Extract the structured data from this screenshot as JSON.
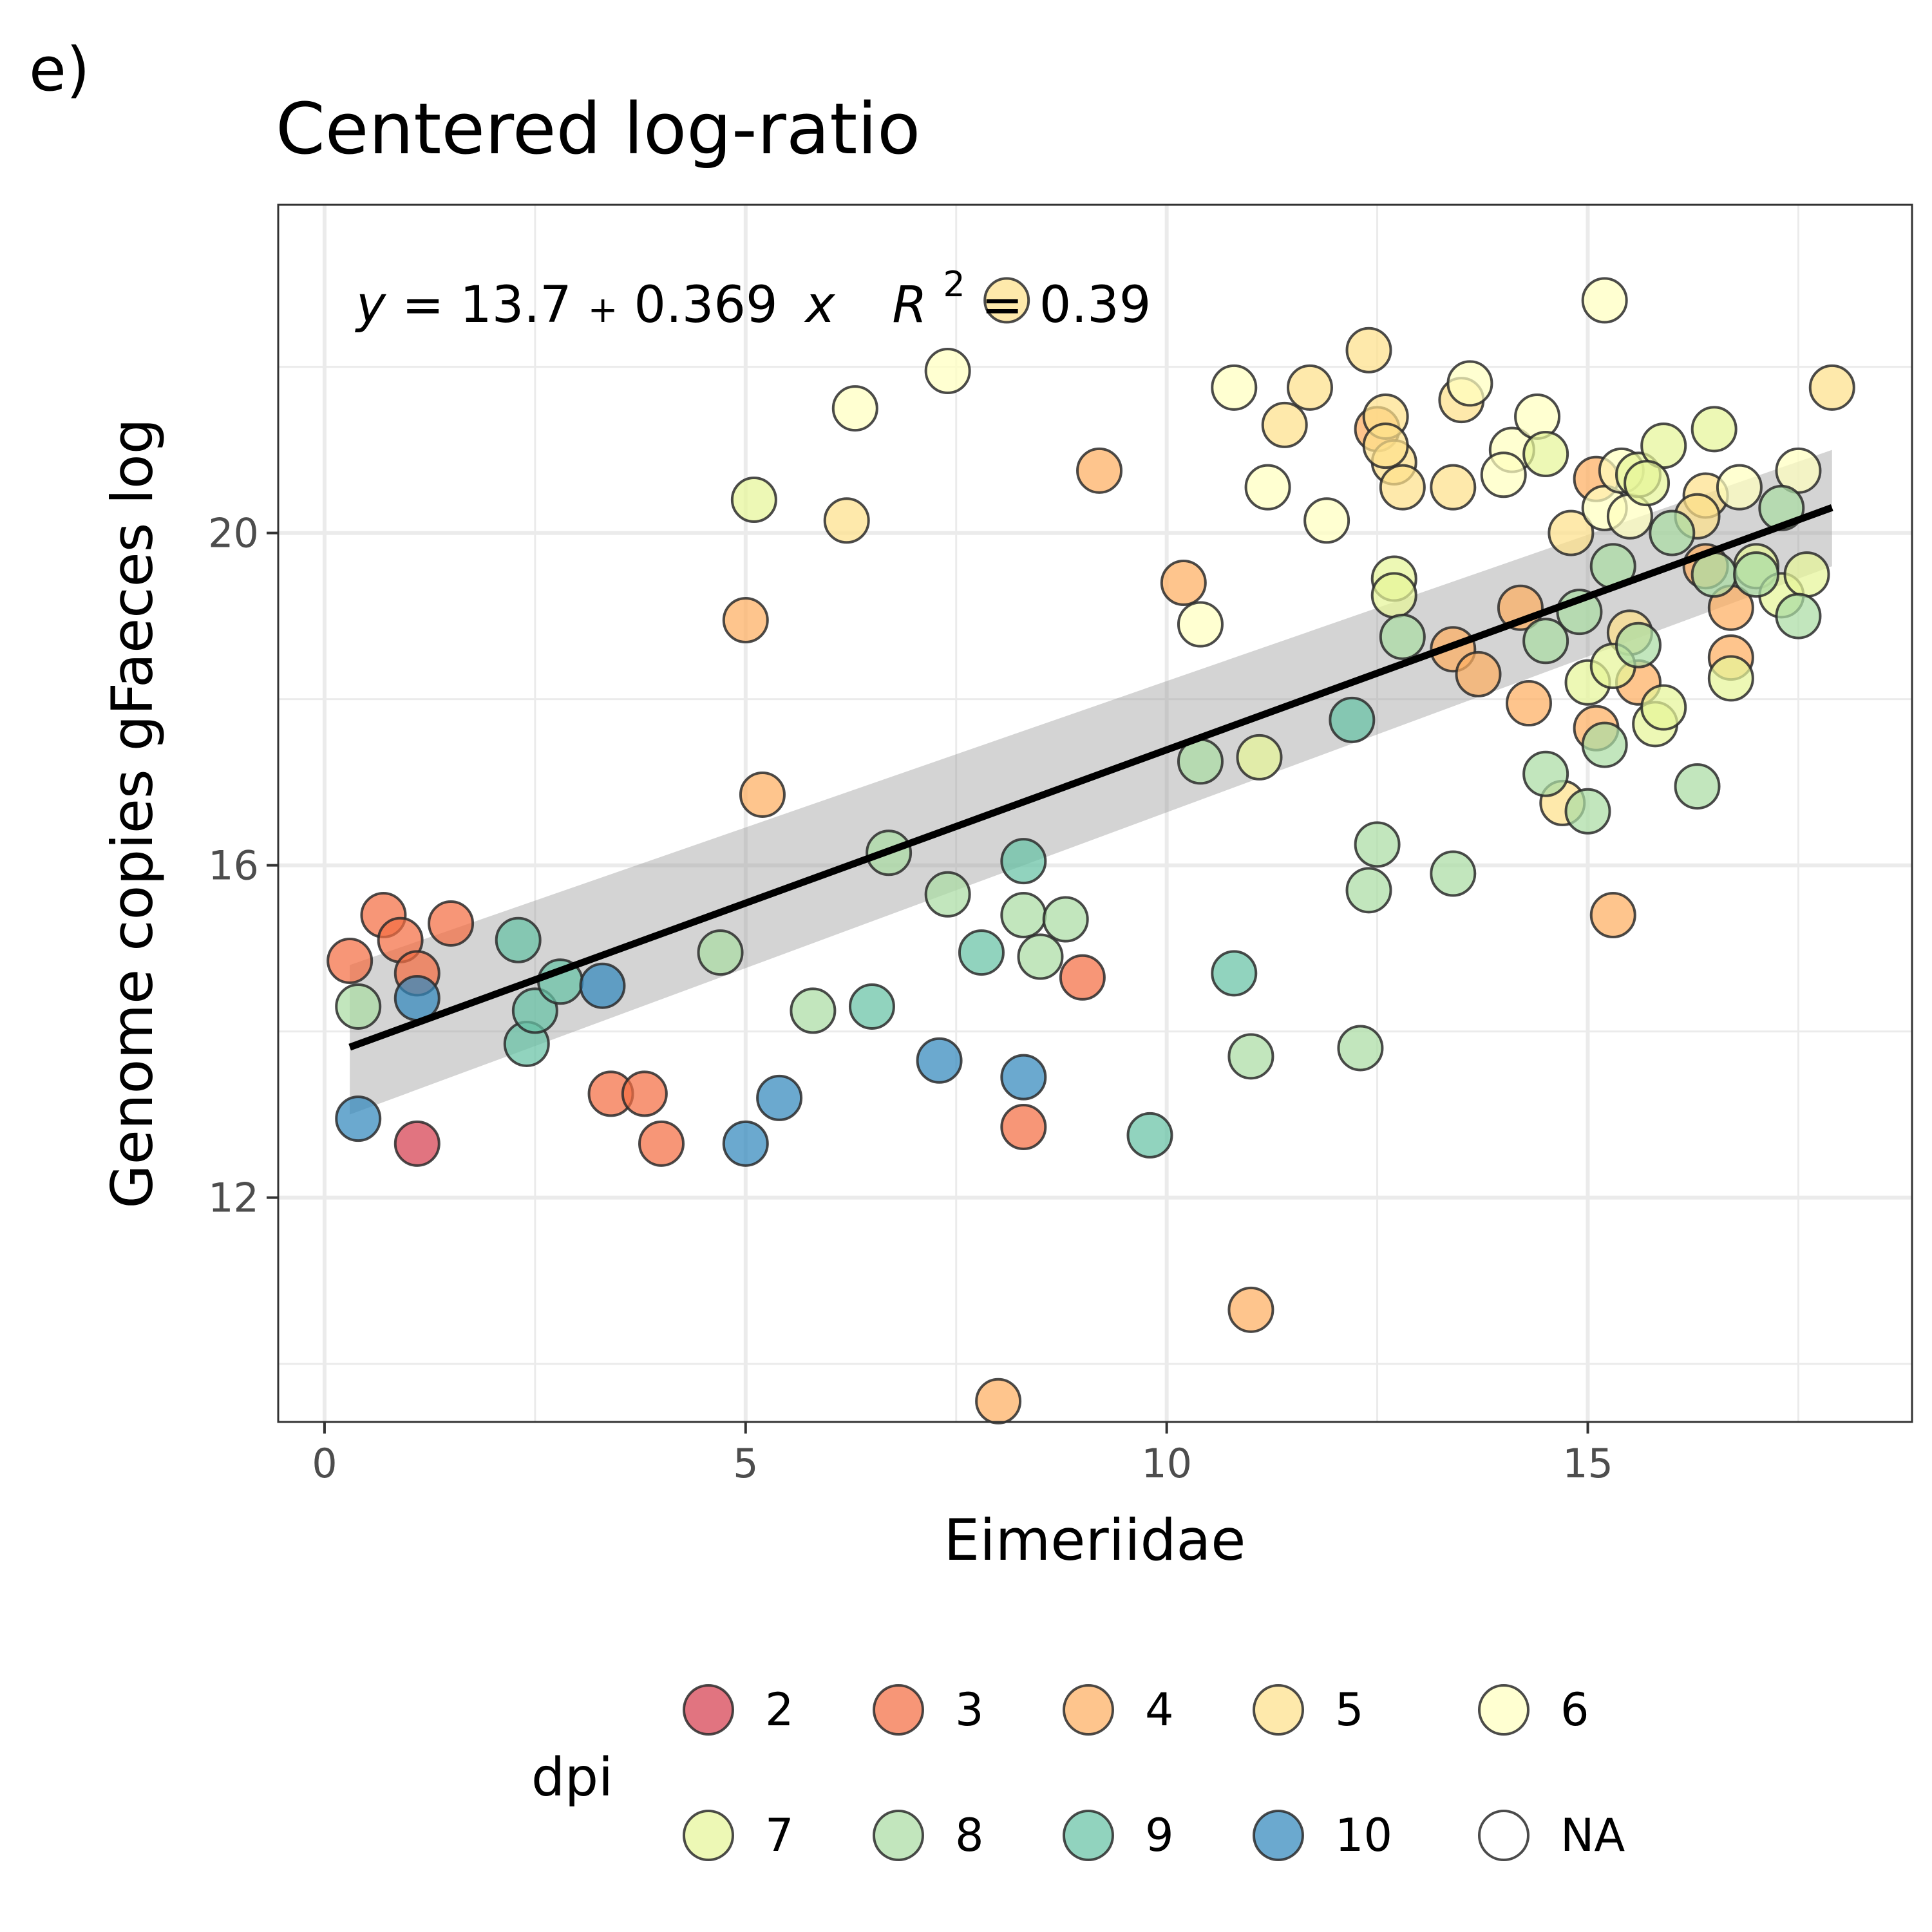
{
  "panel_label": "e)",
  "chart_data": {
    "type": "scatter",
    "title": "Centered log-ratio",
    "xlabel": "Eimeriidae",
    "ylabel": "Genome copies gFaeces log",
    "xlim": [
      -0.55,
      18.85
    ],
    "ylim": [
      9.3,
      23.95
    ],
    "x_ticks": [
      "0",
      "5",
      "10",
      "15"
    ],
    "x_tick_values": [
      0,
      5,
      10,
      15
    ],
    "y_ticks": [
      "12",
      "16",
      "20"
    ],
    "y_tick_values": [
      12,
      16,
      20
    ],
    "grid": true,
    "equation": {
      "y": "y",
      "eq1": " = 13.7",
      "plus": "+",
      "coef": "0.369",
      "x": "x",
      "r": "R",
      "sup": "2",
      "eq2": " = 0.39"
    },
    "fit": {
      "intercept": 13.7,
      "slope": 0.369,
      "x_range": [
        0.3,
        17.9
      ],
      "ci_lower": [
        13.0,
        19.6
      ],
      "ci_upper": [
        14.8,
        21.0
      ]
    },
    "legend": {
      "title": "dpi",
      "placement": "bottom",
      "entries": [
        {
          "label": "2",
          "color": "#D53E4F"
        },
        {
          "label": "3",
          "color": "#F46D43"
        },
        {
          "label": "4",
          "color": "#FDAE61"
        },
        {
          "label": "5",
          "color": "#FEE08B"
        },
        {
          "label": "6",
          "color": "#FFFFBF"
        },
        {
          "label": "7",
          "color": "#E6F598"
        },
        {
          "label": "8",
          "color": "#ABDDA4"
        },
        {
          "label": "9",
          "color": "#66C2A5"
        },
        {
          "label": "10",
          "color": "#3288BD"
        },
        {
          "label": "NA",
          "color": "none"
        }
      ]
    },
    "series": [
      {
        "name": "2",
        "points": [
          [
            1.1,
            12.65
          ]
        ]
      },
      {
        "name": "3",
        "points": [
          [
            0.3,
            14.85
          ],
          [
            0.7,
            15.4
          ],
          [
            0.9,
            15.1
          ],
          [
            1.1,
            14.7
          ],
          [
            1.5,
            15.3
          ],
          [
            3.4,
            13.25
          ],
          [
            3.8,
            13.25
          ],
          [
            4.0,
            12.65
          ],
          [
            8.3,
            12.85
          ],
          [
            9.0,
            14.65
          ]
        ]
      },
      {
        "name": "4",
        "points": [
          [
            5.0,
            18.95
          ],
          [
            5.2,
            16.85
          ],
          [
            9.2,
            20.75
          ],
          [
            10.2,
            19.4
          ],
          [
            11.0,
            10.65
          ],
          [
            8.0,
            9.55
          ],
          [
            13.4,
            18.6
          ],
          [
            13.7,
            18.3
          ],
          [
            14.3,
            17.95
          ],
          [
            15.1,
            17.65
          ],
          [
            15.3,
            15.4
          ],
          [
            15.6,
            18.2
          ],
          [
            16.7,
            19.1
          ],
          [
            16.7,
            18.5
          ],
          [
            15.1,
            20.65
          ],
          [
            12.5,
            21.25
          ],
          [
            14.2,
            19.1
          ],
          [
            16.4,
            19.6
          ]
        ]
      },
      {
        "name": "5",
        "points": [
          [
            6.2,
            20.15
          ],
          [
            8.1,
            22.8
          ],
          [
            11.4,
            21.3
          ],
          [
            11.7,
            21.75
          ],
          [
            12.4,
            22.2
          ],
          [
            12.6,
            21.4
          ],
          [
            12.7,
            20.85
          ],
          [
            12.8,
            20.55
          ],
          [
            12.6,
            21.05
          ],
          [
            13.4,
            20.55
          ],
          [
            13.5,
            21.6
          ],
          [
            14.7,
            16.75
          ],
          [
            14.8,
            20.0
          ],
          [
            15.5,
            18.8
          ],
          [
            16.4,
            20.45
          ],
          [
            16.3,
            20.2
          ],
          [
            17.9,
            21.75
          ]
        ]
      },
      {
        "name": "6",
        "points": [
          [
            6.3,
            21.5
          ],
          [
            7.4,
            21.95
          ],
          [
            10.4,
            18.9
          ],
          [
            10.8,
            21.75
          ],
          [
            11.2,
            20.55
          ],
          [
            11.9,
            20.15
          ],
          [
            13.6,
            21.8
          ],
          [
            14.1,
            21.0
          ],
          [
            14.4,
            21.4
          ],
          [
            15.2,
            22.8
          ],
          [
            15.2,
            20.3
          ],
          [
            15.4,
            20.75
          ],
          [
            15.5,
            20.2
          ],
          [
            16.8,
            20.55
          ],
          [
            17.5,
            20.75
          ],
          [
            14.0,
            20.7
          ]
        ]
      },
      {
        "name": "7",
        "points": [
          [
            5.1,
            20.4
          ],
          [
            11.1,
            17.3
          ],
          [
            12.7,
            19.45
          ],
          [
            12.7,
            19.25
          ],
          [
            14.5,
            20.95
          ],
          [
            15.0,
            18.2
          ],
          [
            15.3,
            18.4
          ],
          [
            15.8,
            17.7
          ],
          [
            15.9,
            17.9
          ],
          [
            15.6,
            20.7
          ],
          [
            15.9,
            21.05
          ],
          [
            16.5,
            21.25
          ],
          [
            17.0,
            19.6
          ],
          [
            17.3,
            19.25
          ],
          [
            17.6,
            19.5
          ],
          [
            16.7,
            18.25
          ],
          [
            15.7,
            20.6
          ]
        ]
      },
      {
        "name": "8",
        "points": [
          [
            0.4,
            14.3
          ],
          [
            4.7,
            14.95
          ],
          [
            5.8,
            14.25
          ],
          [
            6.7,
            16.15
          ],
          [
            7.4,
            15.65
          ],
          [
            8.3,
            15.4
          ],
          [
            8.5,
            14.9
          ],
          [
            8.8,
            15.35
          ],
          [
            10.4,
            17.25
          ],
          [
            11.0,
            13.7
          ],
          [
            12.3,
            13.8
          ],
          [
            12.4,
            15.7
          ],
          [
            12.5,
            16.25
          ],
          [
            12.8,
            18.75
          ],
          [
            13.4,
            15.9
          ],
          [
            14.5,
            17.1
          ],
          [
            14.5,
            18.7
          ],
          [
            15.0,
            16.65
          ],
          [
            15.2,
            17.45
          ],
          [
            15.3,
            19.6
          ],
          [
            15.6,
            18.65
          ],
          [
            16.3,
            16.95
          ],
          [
            16.5,
            19.5
          ],
          [
            17.0,
            19.5
          ],
          [
            17.5,
            19.0
          ],
          [
            16.0,
            20.0
          ],
          [
            14.9,
            19.05
          ],
          [
            17.3,
            20.3
          ]
        ]
      },
      {
        "name": "9",
        "points": [
          [
            2.3,
            15.1
          ],
          [
            2.4,
            13.85
          ],
          [
            2.5,
            14.25
          ],
          [
            2.8,
            14.6
          ],
          [
            6.5,
            14.3
          ],
          [
            7.8,
            14.95
          ],
          [
            8.3,
            16.05
          ],
          [
            9.8,
            12.75
          ],
          [
            10.8,
            14.7
          ],
          [
            12.2,
            17.75
          ]
        ]
      },
      {
        "name": "10",
        "points": [
          [
            0.4,
            12.95
          ],
          [
            1.1,
            14.4
          ],
          [
            3.3,
            14.55
          ],
          [
            5.0,
            12.65
          ],
          [
            5.4,
            13.2
          ],
          [
            7.3,
            13.65
          ],
          [
            8.3,
            13.45
          ]
        ]
      }
    ]
  }
}
